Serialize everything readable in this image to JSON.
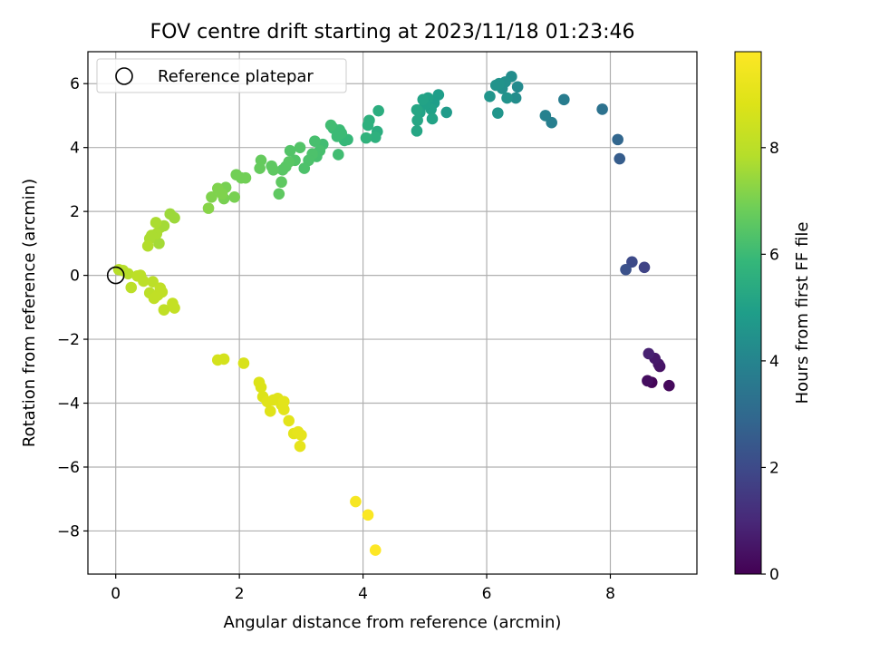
{
  "chart_data": {
    "type": "scatter",
    "title": "FOV centre drift starting at 2023/11/18 01:23:46",
    "xlabel": "Angular distance from reference (arcmin)",
    "ylabel": "Rotation from reference (arcmin)",
    "xlim": [
      -0.45,
      9.4
    ],
    "ylim": [
      -9.35,
      7.0
    ],
    "xticks": [
      0,
      2,
      4,
      6,
      8
    ],
    "yticks": [
      -8,
      -6,
      -4,
      -2,
      0,
      2,
      4,
      6
    ],
    "grid": true,
    "legend": {
      "placement": "top-left",
      "entries": [
        "Reference platepar"
      ]
    },
    "reference_point": {
      "x": 0,
      "y": 0,
      "label": "Reference platepar"
    },
    "colorbar": {
      "label": "Hours from first FF file",
      "range": [
        0,
        9.8
      ],
      "ticks": [
        0,
        2,
        4,
        6,
        8
      ],
      "colormap": "viridis"
    },
    "series": [
      {
        "points": [
          {
            "x": 8.67,
            "y": -3.35,
            "h": 0.1
          },
          {
            "x": 8.95,
            "y": -3.45,
            "h": 0.2
          },
          {
            "x": 8.6,
            "y": -3.3,
            "h": 0.3
          },
          {
            "x": 8.8,
            "y": -2.85,
            "h": 0.4
          },
          {
            "x": 8.78,
            "y": -2.78,
            "h": 0.5
          },
          {
            "x": 8.72,
            "y": -2.6,
            "h": 0.6
          },
          {
            "x": 8.62,
            "y": -2.45,
            "h": 0.8
          },
          {
            "x": 8.55,
            "y": 0.25,
            "h": 1.8
          },
          {
            "x": 8.35,
            "y": 0.42,
            "h": 2.0
          },
          {
            "x": 8.25,
            "y": 0.18,
            "h": 2.2
          },
          {
            "x": 8.15,
            "y": 3.65,
            "h": 2.6
          },
          {
            "x": 8.12,
            "y": 4.25,
            "h": 2.9
          },
          {
            "x": 7.87,
            "y": 5.2,
            "h": 3.3
          },
          {
            "x": 7.25,
            "y": 5.5,
            "h": 3.7
          },
          {
            "x": 7.05,
            "y": 4.78,
            "h": 3.8
          },
          {
            "x": 6.95,
            "y": 5.0,
            "h": 3.9
          },
          {
            "x": 6.5,
            "y": 5.9,
            "h": 4.2
          },
          {
            "x": 6.47,
            "y": 5.55,
            "h": 4.3
          },
          {
            "x": 6.4,
            "y": 6.22,
            "h": 4.3
          },
          {
            "x": 6.3,
            "y": 6.05,
            "h": 4.4
          },
          {
            "x": 6.25,
            "y": 5.85,
            "h": 4.4
          },
          {
            "x": 6.2,
            "y": 6.0,
            "h": 4.5
          },
          {
            "x": 6.15,
            "y": 5.95,
            "h": 4.5
          },
          {
            "x": 6.05,
            "y": 5.6,
            "h": 4.6
          },
          {
            "x": 6.18,
            "y": 5.08,
            "h": 4.6
          },
          {
            "x": 6.33,
            "y": 5.55,
            "h": 4.5
          },
          {
            "x": 5.35,
            "y": 5.1,
            "h": 4.8
          },
          {
            "x": 5.22,
            "y": 5.65,
            "h": 4.9
          },
          {
            "x": 5.15,
            "y": 5.4,
            "h": 4.9
          },
          {
            "x": 5.1,
            "y": 5.2,
            "h": 5.0
          },
          {
            "x": 5.05,
            "y": 5.55,
            "h": 5.0
          },
          {
            "x": 5.0,
            "y": 5.35,
            "h": 5.0
          },
          {
            "x": 4.97,
            "y": 5.5,
            "h": 5.1
          },
          {
            "x": 4.92,
            "y": 5.1,
            "h": 5.1
          },
          {
            "x": 4.88,
            "y": 4.85,
            "h": 5.2
          },
          {
            "x": 4.87,
            "y": 5.18,
            "h": 5.2
          },
          {
            "x": 4.87,
            "y": 4.52,
            "h": 5.2
          },
          {
            "x": 5.12,
            "y": 4.9,
            "h": 5.1
          },
          {
            "x": 4.25,
            "y": 5.15,
            "h": 5.5
          },
          {
            "x": 4.23,
            "y": 4.5,
            "h": 5.5
          },
          {
            "x": 4.2,
            "y": 4.32,
            "h": 5.6
          },
          {
            "x": 4.1,
            "y": 4.85,
            "h": 5.6
          },
          {
            "x": 4.08,
            "y": 4.7,
            "h": 5.6
          },
          {
            "x": 4.05,
            "y": 4.3,
            "h": 5.7
          },
          {
            "x": 3.75,
            "y": 4.25,
            "h": 5.9
          },
          {
            "x": 3.7,
            "y": 4.22,
            "h": 5.9
          },
          {
            "x": 3.65,
            "y": 4.45,
            "h": 6.0
          },
          {
            "x": 3.62,
            "y": 4.55,
            "h": 6.0
          },
          {
            "x": 3.58,
            "y": 4.35,
            "h": 6.0
          },
          {
            "x": 3.52,
            "y": 4.6,
            "h": 6.0
          },
          {
            "x": 3.48,
            "y": 4.7,
            "h": 6.1
          },
          {
            "x": 3.6,
            "y": 3.78,
            "h": 6.1
          },
          {
            "x": 3.35,
            "y": 4.1,
            "h": 6.1
          },
          {
            "x": 3.3,
            "y": 3.9,
            "h": 6.2
          },
          {
            "x": 3.25,
            "y": 3.72,
            "h": 6.2
          },
          {
            "x": 3.22,
            "y": 4.2,
            "h": 6.2
          },
          {
            "x": 3.18,
            "y": 3.8,
            "h": 6.3
          },
          {
            "x": 3.12,
            "y": 3.6,
            "h": 6.3
          },
          {
            "x": 3.05,
            "y": 3.35,
            "h": 6.3
          },
          {
            "x": 2.98,
            "y": 4.0,
            "h": 6.4
          },
          {
            "x": 2.9,
            "y": 3.6,
            "h": 6.4
          },
          {
            "x": 2.82,
            "y": 3.9,
            "h": 6.4
          },
          {
            "x": 2.8,
            "y": 3.55,
            "h": 6.5
          },
          {
            "x": 2.75,
            "y": 3.4,
            "h": 6.5
          },
          {
            "x": 2.7,
            "y": 3.3,
            "h": 6.5
          },
          {
            "x": 2.68,
            "y": 2.92,
            "h": 6.6
          },
          {
            "x": 2.64,
            "y": 2.55,
            "h": 6.6
          },
          {
            "x": 2.55,
            "y": 3.3,
            "h": 6.6
          },
          {
            "x": 2.52,
            "y": 3.42,
            "h": 6.6
          },
          {
            "x": 2.35,
            "y": 3.6,
            "h": 6.7
          },
          {
            "x": 2.33,
            "y": 3.35,
            "h": 6.7
          },
          {
            "x": 2.1,
            "y": 3.05,
            "h": 6.9
          },
          {
            "x": 2.03,
            "y": 3.05,
            "h": 6.9
          },
          {
            "x": 1.95,
            "y": 3.15,
            "h": 6.9
          },
          {
            "x": 1.92,
            "y": 2.45,
            "h": 7.0
          },
          {
            "x": 1.78,
            "y": 2.75,
            "h": 7.0
          },
          {
            "x": 1.75,
            "y": 2.4,
            "h": 7.0
          },
          {
            "x": 1.72,
            "y": 2.55,
            "h": 7.1
          },
          {
            "x": 1.65,
            "y": 2.72,
            "h": 7.1
          },
          {
            "x": 1.55,
            "y": 2.45,
            "h": 7.1
          },
          {
            "x": 1.5,
            "y": 2.1,
            "h": 7.2
          },
          {
            "x": 0.95,
            "y": 1.8,
            "h": 7.5
          },
          {
            "x": 0.88,
            "y": 1.92,
            "h": 7.5
          },
          {
            "x": 0.78,
            "y": 1.55,
            "h": 7.6
          },
          {
            "x": 0.72,
            "y": 1.5,
            "h": 7.6
          },
          {
            "x": 0.7,
            "y": 1.0,
            "h": 7.6
          },
          {
            "x": 0.66,
            "y": 1.3,
            "h": 7.7
          },
          {
            "x": 0.65,
            "y": 1.65,
            "h": 7.7
          },
          {
            "x": 0.58,
            "y": 1.25,
            "h": 7.7
          },
          {
            "x": 0.55,
            "y": 1.15,
            "h": 7.7
          },
          {
            "x": 0.52,
            "y": 0.92,
            "h": 7.8
          },
          {
            "x": 0.05,
            "y": 0.18,
            "h": 7.9
          },
          {
            "x": 0.12,
            "y": 0.15,
            "h": 7.9
          },
          {
            "x": 0.2,
            "y": 0.05,
            "h": 7.9
          },
          {
            "x": 0.25,
            "y": -0.38,
            "h": 8.0
          },
          {
            "x": 0.35,
            "y": -0.02,
            "h": 8.0
          },
          {
            "x": 0.4,
            "y": 0.0,
            "h": 8.0
          },
          {
            "x": 0.45,
            "y": -0.18,
            "h": 8.0
          },
          {
            "x": 0.55,
            "y": -0.55,
            "h": 8.0
          },
          {
            "x": 0.6,
            "y": -0.2,
            "h": 8.0
          },
          {
            "x": 0.62,
            "y": -0.72,
            "h": 8.1
          },
          {
            "x": 0.68,
            "y": -0.62,
            "h": 8.1
          },
          {
            "x": 0.72,
            "y": -0.4,
            "h": 8.1
          },
          {
            "x": 0.75,
            "y": -0.52,
            "h": 8.1
          },
          {
            "x": 0.78,
            "y": -1.08,
            "h": 8.1
          },
          {
            "x": 0.92,
            "y": -0.88,
            "h": 8.2
          },
          {
            "x": 0.95,
            "y": -1.02,
            "h": 8.2
          },
          {
            "x": 1.65,
            "y": -2.65,
            "h": 8.6
          },
          {
            "x": 1.75,
            "y": -2.62,
            "h": 8.6
          },
          {
            "x": 2.07,
            "y": -2.75,
            "h": 8.7
          },
          {
            "x": 2.32,
            "y": -3.35,
            "h": 8.8
          },
          {
            "x": 2.35,
            "y": -3.5,
            "h": 8.8
          },
          {
            "x": 2.38,
            "y": -3.8,
            "h": 8.8
          },
          {
            "x": 2.45,
            "y": -3.95,
            "h": 8.9
          },
          {
            "x": 2.5,
            "y": -4.25,
            "h": 8.9
          },
          {
            "x": 2.55,
            "y": -3.9,
            "h": 8.9
          },
          {
            "x": 2.62,
            "y": -3.85,
            "h": 8.9
          },
          {
            "x": 2.68,
            "y": -4.05,
            "h": 8.9
          },
          {
            "x": 2.72,
            "y": -3.95,
            "h": 9.0
          },
          {
            "x": 2.72,
            "y": -4.2,
            "h": 9.0
          },
          {
            "x": 2.8,
            "y": -4.55,
            "h": 9.0
          },
          {
            "x": 2.88,
            "y": -4.95,
            "h": 9.0
          },
          {
            "x": 2.95,
            "y": -4.9,
            "h": 9.1
          },
          {
            "x": 2.98,
            "y": -5.35,
            "h": 9.1
          },
          {
            "x": 3.0,
            "y": -5.0,
            "h": 9.1
          },
          {
            "x": 3.88,
            "y": -7.08,
            "h": 9.6
          },
          {
            "x": 4.08,
            "y": -7.5,
            "h": 9.7
          },
          {
            "x": 4.2,
            "y": -8.6,
            "h": 9.8
          }
        ]
      }
    ]
  }
}
